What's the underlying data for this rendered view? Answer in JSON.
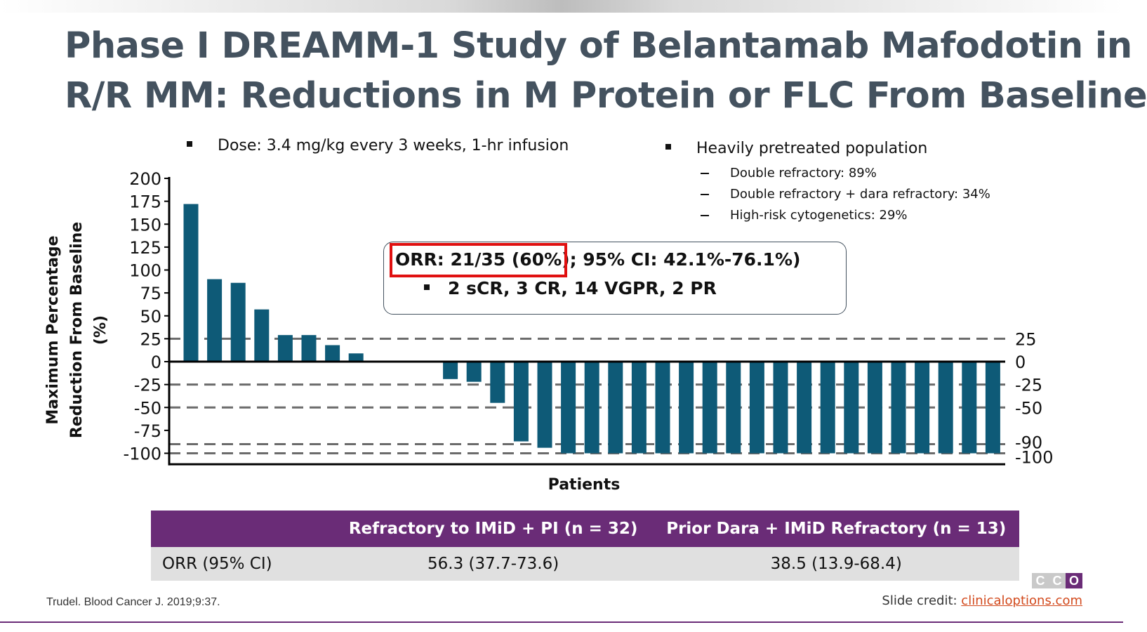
{
  "slide": {
    "title_line1": "Phase I DREAMM-1 Study of Belantamab Mafodotin in",
    "title_line2": "R/R MM: Reductions in M Protein or FLC From Baseline",
    "bullet_dose": "Dose: 3.4 mg/kg every 3 weeks, 1-hr infusion",
    "bullet_population": "Heavily pretreated population",
    "sub_bullets": [
      "Double refractory: 89%",
      "Double refractory + dara refractory: 34%",
      "High-risk cytogenetics: 29%"
    ],
    "orr_highlight": "ORR: 21/35 (60%)",
    "orr_rest": "; 95% CI: 42.1%-76.1%)",
    "responses": "2 sCR, 3 CR, 14 VGPR, 2 PR",
    "citation": "Trudel. Blood Cancer J. 2019;9:37.",
    "credit_label": "Slide credit: ",
    "credit_link": "clinicaloptions.com",
    "logo_letters": [
      "C",
      "C",
      "O"
    ]
  },
  "table": {
    "headers": [
      "",
      "Refractory to IMiD + PI (n = 32)",
      "Prior Dara + IMiD Refractory (n = 13)"
    ],
    "rows": [
      [
        "ORR (95% CI)",
        "56.3 (37.7-73.6)",
        "38.5 (13.9-68.4)"
      ]
    ]
  },
  "colors": {
    "bar": "#0e5a77",
    "title": "#44525f",
    "table_header": "#6a2c77",
    "table_row": "#e0e0e0",
    "highlight": "#e01010",
    "link": "#d2491c"
  },
  "chart_data": {
    "type": "bar",
    "title": "",
    "xlabel": "Patients",
    "ylabel": "Maximum Percentage Reduction From Baseline (%)",
    "ylabel_line1": "Maximum Percentage",
    "ylabel_line2": "Reduction From Baseline (%)",
    "ylim": [
      -110,
      200
    ],
    "yticks": [
      200,
      175,
      150,
      125,
      100,
      75,
      50,
      25,
      0,
      -25,
      -50,
      -75,
      -100
    ],
    "reference_lines": [
      25,
      0,
      -25,
      -50,
      -90,
      -100
    ],
    "right_labels": [
      "25",
      "0",
      "-25",
      "-50",
      "-90",
      "-100"
    ],
    "values": [
      172,
      90,
      86,
      57,
      29,
      29,
      18,
      9,
      0,
      0,
      0,
      -19,
      -22,
      -45,
      -87,
      -94,
      -100,
      -100,
      -100,
      -100,
      -100,
      -100,
      -100,
      -100,
      -100,
      -100,
      -100,
      -100,
      -100,
      -100,
      -100,
      -100,
      -100,
      -100,
      -100
    ]
  }
}
